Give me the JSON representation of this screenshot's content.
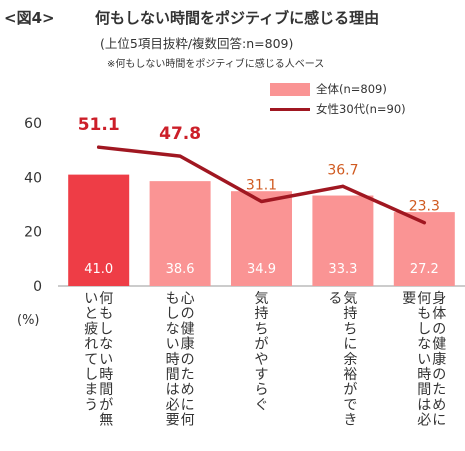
{
  "header": {
    "fig_label": "<図4>",
    "title": "何もしない時間をポジティブに感じる理由",
    "subtitle": "(上位5項目抜粋/複数回答:n=809)",
    "note": "※何もしない時間をポジティブに感じる人ベース"
  },
  "legend": {
    "bar_label": "全体(n=809)",
    "line_label": "女性30代(n=90)"
  },
  "axis": {
    "unit": "(%)"
  },
  "colors": {
    "bar_first": "#ee3d46",
    "bar": "#fa9494",
    "line": "#a01721",
    "bar_text": "#ffffff",
    "line_text_big": "#cc1f29",
    "line_text": "#d05a20"
  },
  "chart_data": {
    "type": "bar",
    "categories": [
      "何もしない時間が無いと疲れてしまう",
      "心の健康のために何もしない時間は必要",
      "気持ちがやすらぐ",
      "気持ちに余裕ができる",
      "身体の健康のために何もしない時間は必要"
    ],
    "series": [
      {
        "name": "全体(n=809)",
        "type": "bar",
        "values": [
          41.0,
          38.6,
          34.9,
          33.3,
          27.2
        ]
      },
      {
        "name": "女性30代(n=90)",
        "type": "line",
        "values": [
          51.1,
          47.8,
          31.1,
          36.7,
          23.3
        ]
      }
    ],
    "bar_labels": [
      "41.0",
      "38.6",
      "34.9",
      "33.3",
      "27.2"
    ],
    "line_labels": [
      "51.1",
      "47.8",
      "31.1",
      "36.7",
      "23.3"
    ],
    "yticks": [
      "0",
      "20",
      "40",
      "60"
    ],
    "ylim": [
      0,
      60
    ],
    "xlabel": "",
    "ylabel": "(%)",
    "grid": false,
    "legend_position": "top-right"
  }
}
